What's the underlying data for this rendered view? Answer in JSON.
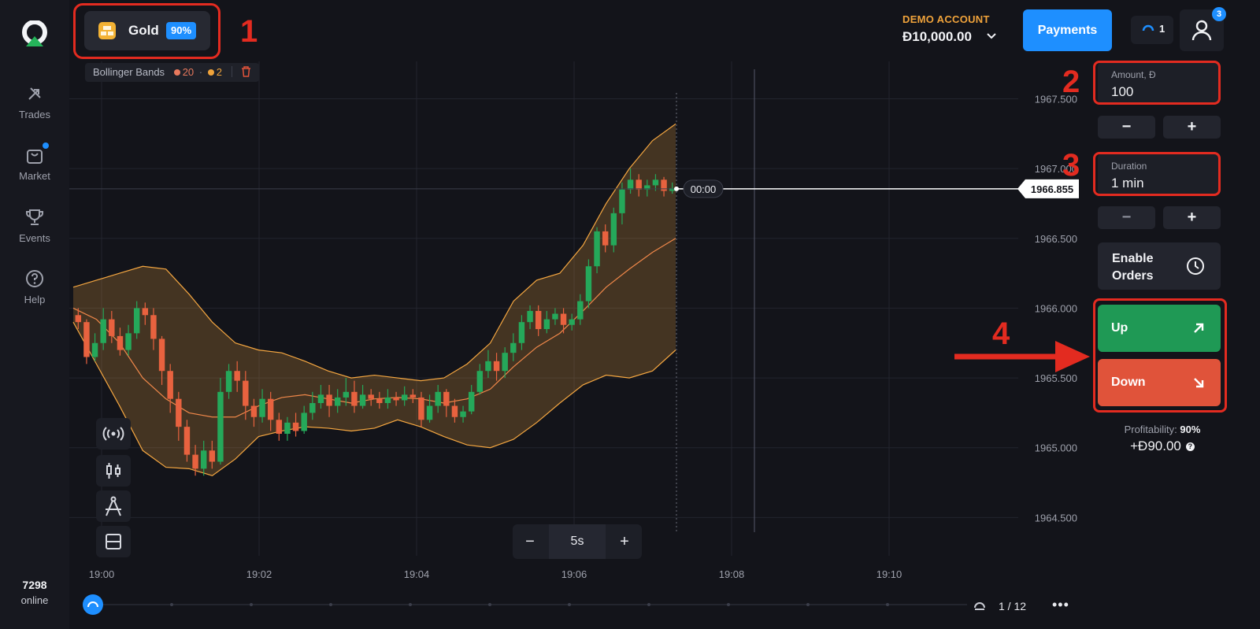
{
  "sidebar": {
    "items": [
      {
        "label": "Trades",
        "icon": "trades-icon"
      },
      {
        "label": "Market",
        "icon": "shopping-bag-icon"
      },
      {
        "label": "Events",
        "icon": "trophy-icon"
      },
      {
        "label": "Help",
        "icon": "help-icon"
      }
    ],
    "online_count": "7298",
    "online_label": "online"
  },
  "asset": {
    "name": "Gold",
    "payout": "90%",
    "icon": "gold-bars-icon"
  },
  "callouts": [
    "1",
    "2",
    "3",
    "4"
  ],
  "account": {
    "label": "DEMO ACCOUNT",
    "balance": "Đ10,000.00"
  },
  "header": {
    "payments_label": "Payments",
    "pending_count": "1",
    "notifications": "3"
  },
  "indicator": {
    "name": "Bollinger Bands",
    "period": "20",
    "deviation": "2",
    "sep": "·"
  },
  "chart": {
    "current_price": "1966.855",
    "countdown": "00:00",
    "zoom": {
      "minus": "−",
      "value": "5s",
      "plus": "+"
    },
    "pager": "1 / 12",
    "more": "•••"
  },
  "chart_data": {
    "type": "candlestick",
    "instrument": "Gold",
    "x_ticks": [
      "19:00",
      "19:02",
      "19:04",
      "19:06",
      "19:08",
      "19:10"
    ],
    "y_ticks": [
      1964.5,
      1965.0,
      1965.5,
      1966.0,
      1966.5,
      1967.0,
      1967.5
    ],
    "ylim": [
      1964.35,
      1967.7
    ],
    "current": 1966.855,
    "indicator": "Bollinger Bands (20, 2)",
    "candles": [
      [
        1965.95,
        1965.9,
        1966.0,
        1965.85
      ],
      [
        1965.9,
        1965.65,
        1965.92,
        1965.6
      ],
      [
        1965.65,
        1965.75,
        1965.82,
        1965.62
      ],
      [
        1965.75,
        1965.92,
        1966.0,
        1965.7
      ],
      [
        1965.92,
        1965.8,
        1965.98,
        1965.75
      ],
      [
        1965.8,
        1965.7,
        1965.86,
        1965.66
      ],
      [
        1965.7,
        1965.82,
        1965.88,
        1965.66
      ],
      [
        1965.82,
        1966.0,
        1966.05,
        1965.78
      ],
      [
        1966.0,
        1965.95,
        1966.04,
        1965.88
      ],
      [
        1965.95,
        1965.78,
        1966.0,
        1965.7
      ],
      [
        1965.78,
        1965.55,
        1965.8,
        1965.45
      ],
      [
        1965.55,
        1965.35,
        1965.6,
        1965.25
      ],
      [
        1965.35,
        1965.15,
        1965.4,
        1965.05
      ],
      [
        1965.15,
        1964.95,
        1965.2,
        1964.9
      ],
      [
        1964.95,
        1964.85,
        1965.02,
        1964.8
      ],
      [
        1964.85,
        1964.98,
        1965.05,
        1964.8
      ],
      [
        1964.98,
        1964.9,
        1965.05,
        1964.85
      ],
      [
        1964.9,
        1965.4,
        1965.5,
        1964.88
      ],
      [
        1965.4,
        1965.55,
        1965.6,
        1965.35
      ],
      [
        1965.55,
        1965.48,
        1965.62,
        1965.4
      ],
      [
        1965.48,
        1965.3,
        1965.55,
        1965.2
      ],
      [
        1965.3,
        1965.22,
        1965.35,
        1965.15
      ],
      [
        1965.22,
        1965.35,
        1965.42,
        1965.18
      ],
      [
        1965.35,
        1965.2,
        1965.4,
        1965.12
      ],
      [
        1965.2,
        1965.1,
        1965.25,
        1965.05
      ],
      [
        1965.1,
        1965.18,
        1965.22,
        1965.05
      ],
      [
        1965.18,
        1965.12,
        1965.25,
        1965.08
      ],
      [
        1965.12,
        1965.25,
        1965.3,
        1965.1
      ],
      [
        1965.25,
        1965.32,
        1965.4,
        1965.2
      ],
      [
        1965.32,
        1965.38,
        1965.45,
        1965.28
      ],
      [
        1965.38,
        1965.3,
        1965.45,
        1965.22
      ],
      [
        1965.3,
        1965.36,
        1965.42,
        1965.25
      ],
      [
        1965.36,
        1965.4,
        1965.5,
        1965.3
      ],
      [
        1965.4,
        1965.3,
        1965.48,
        1965.25
      ],
      [
        1965.3,
        1965.38,
        1965.45,
        1965.28
      ],
      [
        1965.38,
        1965.35,
        1965.42,
        1965.3
      ],
      [
        1965.35,
        1965.32,
        1965.4,
        1965.28
      ],
      [
        1965.32,
        1965.36,
        1965.42,
        1965.28
      ],
      [
        1965.36,
        1965.34,
        1965.4,
        1965.3
      ],
      [
        1965.34,
        1965.38,
        1965.44,
        1965.3
      ],
      [
        1965.38,
        1965.36,
        1965.42,
        1965.32
      ],
      [
        1965.36,
        1965.2,
        1965.4,
        1965.15
      ],
      [
        1965.2,
        1965.3,
        1965.38,
        1965.18
      ],
      [
        1965.3,
        1965.4,
        1965.45,
        1965.25
      ],
      [
        1965.4,
        1965.3,
        1965.42,
        1965.22
      ],
      [
        1965.3,
        1965.22,
        1965.35,
        1965.18
      ],
      [
        1965.22,
        1965.26,
        1965.3,
        1965.18
      ],
      [
        1965.26,
        1965.4,
        1965.45,
        1965.24
      ],
      [
        1965.4,
        1965.55,
        1965.6,
        1965.38
      ],
      [
        1965.55,
        1965.62,
        1965.7,
        1965.5
      ],
      [
        1965.62,
        1965.55,
        1965.68,
        1965.48
      ],
      [
        1965.55,
        1965.68,
        1965.72,
        1965.5
      ],
      [
        1965.68,
        1965.75,
        1965.82,
        1965.62
      ],
      [
        1965.75,
        1965.9,
        1965.95,
        1965.7
      ],
      [
        1965.9,
        1965.98,
        1966.02,
        1965.85
      ],
      [
        1965.98,
        1965.85,
        1966.02,
        1965.8
      ],
      [
        1965.85,
        1965.92,
        1965.98,
        1965.82
      ],
      [
        1965.92,
        1965.96,
        1966.0,
        1965.88
      ],
      [
        1965.96,
        1965.88,
        1966.0,
        1965.82
      ],
      [
        1965.88,
        1965.92,
        1965.96,
        1965.84
      ],
      [
        1965.92,
        1966.05,
        1966.1,
        1965.88
      ],
      [
        1966.05,
        1966.3,
        1966.35,
        1966.0
      ],
      [
        1966.3,
        1966.55,
        1966.58,
        1966.25
      ],
      [
        1966.55,
        1966.45,
        1966.6,
        1966.4
      ],
      [
        1966.45,
        1966.68,
        1966.72,
        1966.4
      ],
      [
        1966.68,
        1966.85,
        1966.9,
        1966.6
      ],
      [
        1966.85,
        1966.92,
        1967.0,
        1966.82
      ],
      [
        1966.92,
        1966.85,
        1966.96,
        1966.8
      ],
      [
        1966.85,
        1966.88,
        1966.92,
        1966.8
      ],
      [
        1966.88,
        1966.92,
        1966.96,
        1966.84
      ],
      [
        1966.92,
        1966.84,
        1966.94,
        1966.8
      ],
      [
        1966.84,
        1966.86,
        1966.9,
        1966.82
      ]
    ],
    "bb_upper": [
      1966.15,
      1966.2,
      1966.25,
      1966.3,
      1966.28,
      1966.1,
      1965.9,
      1965.75,
      1965.7,
      1965.68,
      1965.62,
      1965.55,
      1965.5,
      1965.52,
      1965.5,
      1965.48,
      1965.5,
      1965.6,
      1965.75,
      1966.05,
      1966.2,
      1966.25,
      1966.45,
      1966.75,
      1967.0,
      1967.2,
      1967.32
    ],
    "bb_lower": [
      1965.9,
      1965.6,
      1965.3,
      1964.98,
      1964.86,
      1964.85,
      1964.8,
      1964.92,
      1965.08,
      1965.12,
      1965.15,
      1965.14,
      1965.12,
      1965.14,
      1965.2,
      1965.15,
      1965.08,
      1965.02,
      1965.0,
      1965.06,
      1965.18,
      1965.32,
      1965.45,
      1965.52,
      1965.5,
      1965.55,
      1965.7
    ],
    "bb_mid": [
      1966.0,
      1965.92,
      1965.75,
      1965.5,
      1965.35,
      1965.25,
      1965.22,
      1965.22,
      1965.3,
      1965.36,
      1965.38,
      1965.35,
      1965.32,
      1965.35,
      1965.36,
      1965.35,
      1965.32,
      1965.35,
      1965.42,
      1965.58,
      1965.72,
      1965.82,
      1965.98,
      1966.15,
      1966.28,
      1966.4,
      1966.5
    ]
  },
  "trade_panel": {
    "amount_label": "Amount, Đ",
    "amount_value": "100",
    "duration_label": "Duration",
    "duration_value": "1 min",
    "minus": "−",
    "plus": "+",
    "enable_orders": "Enable Orders",
    "up_label": "Up",
    "down_label": "Down",
    "profitability_label": "Profitability:",
    "profitability_value": "90%",
    "payout": "+Đ90.00",
    "help": "?"
  },
  "colors": {
    "up": "#1f9955",
    "down": "#e0533a",
    "accent": "#1e8fff",
    "bands": "#f5a741",
    "annotation": "#e32b20"
  }
}
